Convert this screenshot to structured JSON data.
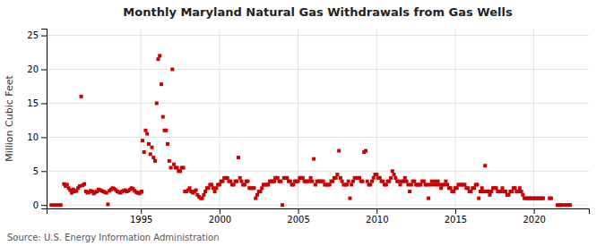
{
  "chart_data": {
    "type": "scatter",
    "title": "Monthly Maryland Natural Gas Withdrawals from Gas Wells",
    "ylabel": "Million Cubic Feet",
    "annotations": [
      "Source: U.S. Energy Information Administration"
    ],
    "color": "#cc0000",
    "marker": "square",
    "grid": true,
    "xlim": [
      1989.0,
      2023.5
    ],
    "ylim": [
      -0.5,
      26
    ],
    "xticks": [
      1995,
      2000,
      2005,
      2010,
      2015,
      2020
    ],
    "yticks": [
      0,
      5,
      10,
      15,
      20,
      25
    ],
    "x": [
      1989.3,
      1989.5,
      1989.7,
      1989.9,
      1990.1,
      1990.2,
      1990.3,
      1990.4,
      1990.5,
      1990.6,
      1990.7,
      1990.8,
      1990.9,
      1991.0,
      1991.1,
      1991.2,
      1991.3,
      1991.4,
      1991.5,
      1991.6,
      1991.7,
      1991.8,
      1991.9,
      1992.0,
      1992.1,
      1992.2,
      1992.3,
      1992.4,
      1992.5,
      1992.6,
      1992.7,
      1992.8,
      1992.9,
      1993.0,
      1993.1,
      1993.2,
      1993.3,
      1993.4,
      1993.5,
      1993.6,
      1993.7,
      1993.8,
      1993.9,
      1994.0,
      1994.1,
      1994.2,
      1994.3,
      1994.4,
      1994.5,
      1994.6,
      1994.7,
      1994.8,
      1994.9,
      1995.0,
      1995.05,
      1995.1,
      1995.2,
      1995.3,
      1995.4,
      1995.5,
      1995.6,
      1995.7,
      1995.8,
      1995.9,
      1996.0,
      1996.1,
      1996.2,
      1996.3,
      1996.4,
      1996.5,
      1996.6,
      1996.7,
      1996.8,
      1996.9,
      1997.0,
      1997.1,
      1997.2,
      1997.3,
      1997.4,
      1997.5,
      1997.6,
      1997.7,
      1997.8,
      1997.9,
      1998.0,
      1998.1,
      1998.2,
      1998.3,
      1998.4,
      1998.5,
      1998.6,
      1998.7,
      1998.8,
      1998.9,
      1999.0,
      1999.1,
      1999.2,
      1999.3,
      1999.4,
      1999.5,
      1999.6,
      1999.7,
      1999.8,
      1999.9,
      2000.0,
      2000.1,
      2000.2,
      2000.3,
      2000.4,
      2000.5,
      2000.6,
      2000.7,
      2000.8,
      2000.9,
      2001.0,
      2001.1,
      2001.2,
      2001.3,
      2001.4,
      2001.5,
      2001.6,
      2001.7,
      2001.8,
      2001.9,
      2002.0,
      2002.1,
      2002.2,
      2002.3,
      2002.4,
      2002.5,
      2002.6,
      2002.7,
      2002.8,
      2002.9,
      2003.0,
      2003.1,
      2003.2,
      2003.3,
      2003.4,
      2003.5,
      2003.55,
      2003.6,
      2003.7,
      2003.8,
      2003.9,
      2004.0,
      2004.1,
      2004.2,
      2004.3,
      2004.4,
      2004.5,
      2004.6,
      2004.7,
      2004.8,
      2004.9,
      2005.0,
      2005.1,
      2005.2,
      2005.3,
      2005.4,
      2005.5,
      2005.6,
      2005.7,
      2005.8,
      2005.9,
      2006.0,
      2006.1,
      2006.2,
      2006.3,
      2006.4,
      2006.5,
      2006.6,
      2006.7,
      2006.8,
      2006.9,
      2007.0,
      2007.1,
      2007.2,
      2007.3,
      2007.4,
      2007.5,
      2007.6,
      2007.7,
      2007.8,
      2007.9,
      2008.0,
      2008.1,
      2008.2,
      2008.3,
      2008.4,
      2008.5,
      2008.6,
      2008.7,
      2008.8,
      2008.9,
      2009.0,
      2009.1,
      2009.2,
      2009.3,
      2009.4,
      2009.5,
      2009.6,
      2009.7,
      2009.8,
      2009.9,
      2010.0,
      2010.1,
      2010.2,
      2010.3,
      2010.4,
      2010.5,
      2010.6,
      2010.7,
      2010.8,
      2010.9,
      2011.0,
      2011.1,
      2011.2,
      2011.3,
      2011.4,
      2011.5,
      2011.6,
      2011.7,
      2011.8,
      2011.9,
      2012.0,
      2012.1,
      2012.2,
      2012.3,
      2012.4,
      2012.5,
      2012.6,
      2012.7,
      2012.8,
      2012.9,
      2013.0,
      2013.1,
      2013.2,
      2013.3,
      2013.4,
      2013.5,
      2013.6,
      2013.7,
      2013.8,
      2013.9,
      2014.0,
      2014.1,
      2014.2,
      2014.3,
      2014.4,
      2014.5,
      2014.6,
      2014.7,
      2014.8,
      2014.9,
      2015.0,
      2015.1,
      2015.2,
      2015.3,
      2015.4,
      2015.5,
      2015.6,
      2015.7,
      2015.8,
      2015.9,
      2016.0,
      2016.1,
      2016.2,
      2016.3,
      2016.4,
      2016.5,
      2016.6,
      2016.7,
      2016.8,
      2016.9,
      2017.0,
      2017.1,
      2017.2,
      2017.3,
      2017.4,
      2017.5,
      2017.6,
      2017.7,
      2017.8,
      2017.9,
      2018.0,
      2018.1,
      2018.2,
      2018.3,
      2018.4,
      2018.5,
      2018.6,
      2018.7,
      2018.8,
      2018.9,
      2019.0,
      2019.1,
      2019.2,
      2019.3,
      2019.4,
      2019.5,
      2019.6,
      2019.7,
      2019.8,
      2019.9,
      2020.0,
      2020.1,
      2020.2,
      2020.3,
      2020.4,
      2020.5,
      2020.6,
      2021.0,
      2021.1,
      2021.5,
      2021.6,
      2021.7,
      2021.8,
      2022.0,
      2022.1,
      2022.2,
      2022.3
    ],
    "values": [
      0.0,
      0.0,
      0.0,
      0.0,
      3.1,
      2.8,
      3.0,
      2.5,
      2.2,
      1.8,
      2.3,
      2.0,
      2.1,
      2.5,
      2.8,
      16.0,
      2.9,
      3.1,
      2.0,
      1.8,
      1.9,
      2.1,
      2.0,
      1.7,
      1.9,
      2.0,
      2.3,
      2.2,
      2.1,
      2.0,
      1.9,
      1.8,
      0.1,
      2.1,
      2.3,
      2.5,
      2.4,
      2.2,
      2.0,
      1.9,
      1.8,
      2.0,
      2.1,
      2.2,
      2.0,
      2.1,
      2.3,
      2.5,
      2.4,
      2.1,
      1.9,
      1.8,
      1.7,
      1.9,
      2.0,
      9.5,
      7.8,
      11.0,
      10.5,
      9.0,
      7.5,
      8.5,
      7.0,
      6.5,
      15.0,
      21.5,
      22.0,
      17.8,
      13.0,
      11.0,
      11.0,
      9.0,
      6.5,
      5.5,
      20.0,
      6.0,
      5.5,
      5.5,
      5.0,
      5.0,
      5.5,
      5.5,
      2.0,
      2.0,
      2.2,
      2.5,
      2.0,
      1.8,
      2.0,
      2.2,
      1.5,
      1.2,
      1.0,
      1.0,
      1.5,
      2.0,
      2.5,
      2.5,
      3.0,
      3.0,
      2.5,
      2.0,
      2.5,
      3.0,
      3.0,
      3.5,
      3.5,
      4.0,
      4.0,
      4.0,
      3.5,
      3.5,
      3.0,
      3.0,
      3.5,
      3.5,
      7.0,
      4.0,
      3.5,
      3.0,
      3.0,
      3.5,
      3.5,
      2.5,
      2.5,
      2.5,
      2.5,
      1.0,
      1.5,
      2.0,
      2.0,
      2.5,
      3.0,
      3.0,
      3.0,
      3.0,
      3.5,
      3.5,
      3.5,
      3.5,
      4.0,
      4.0,
      4.0,
      3.5,
      3.5,
      0.0,
      4.0,
      4.0,
      4.0,
      3.5,
      3.5,
      3.0,
      3.0,
      3.5,
      3.5,
      3.5,
      4.0,
      4.0,
      4.0,
      3.5,
      3.5,
      3.5,
      3.5,
      4.0,
      3.5,
      6.8,
      3.0,
      3.5,
      3.5,
      3.5,
      3.5,
      3.5,
      3.0,
      3.0,
      3.0,
      3.0,
      3.5,
      3.5,
      4.0,
      4.0,
      4.5,
      8.0,
      4.0,
      3.5,
      3.0,
      3.0,
      3.0,
      3.5,
      1.0,
      3.0,
      3.5,
      4.0,
      4.0,
      4.0,
      4.0,
      3.5,
      3.5,
      7.8,
      8.0,
      3.5,
      3.0,
      3.0,
      3.5,
      4.0,
      4.5,
      4.5,
      4.0,
      4.0,
      3.5,
      3.5,
      3.0,
      3.0,
      3.5,
      3.5,
      4.0,
      5.0,
      4.5,
      4.0,
      3.5,
      3.5,
      3.0,
      3.5,
      3.5,
      4.0,
      3.5,
      3.0,
      2.0,
      3.0,
      3.5,
      3.5,
      3.0,
      3.0,
      3.0,
      3.0,
      3.5,
      3.5,
      3.0,
      3.0,
      1.0,
      3.0,
      3.5,
      3.0,
      3.5,
      3.0,
      3.5,
      3.0,
      2.5,
      3.0,
      3.0,
      3.5,
      3.0,
      2.5,
      2.5,
      2.0,
      2.0,
      2.5,
      2.5,
      3.0,
      3.0,
      3.0,
      3.0,
      3.0,
      2.5,
      2.5,
      2.0,
      2.0,
      2.5,
      2.5,
      3.0,
      3.0,
      1.0,
      2.0,
      2.5,
      2.0,
      5.8,
      2.0,
      2.0,
      1.5,
      2.0,
      2.5,
      2.5,
      2.5,
      2.0,
      2.0,
      2.0,
      2.5,
      2.0,
      2.0,
      1.5,
      1.5,
      2.0,
      2.0,
      2.5,
      2.5,
      2.0,
      2.0,
      2.5,
      2.0,
      1.5,
      1.0,
      1.0,
      1.0,
      1.0,
      1.0,
      1.0,
      1.0,
      1.0,
      1.0,
      1.0,
      1.0,
      1.0,
      1.0,
      1.0,
      1.0,
      0.0,
      0.0,
      0.0,
      0.0,
      0.0,
      0.0,
      0.0,
      0.0
    ]
  }
}
